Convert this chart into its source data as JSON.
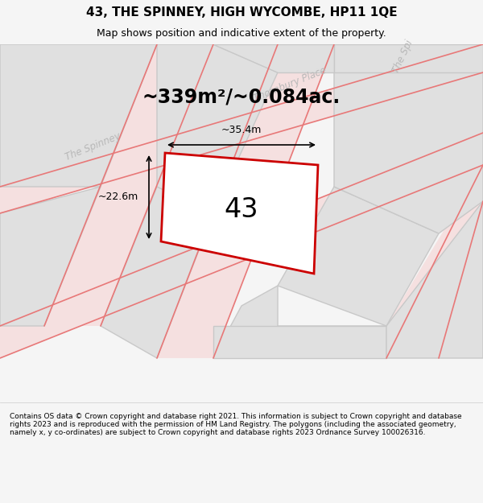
{
  "title": "43, THE SPINNEY, HIGH WYCOMBE, HP11 1QE",
  "subtitle": "Map shows position and indicative extent of the property.",
  "area_text": "~339m²/~0.084ac.",
  "property_number": "43",
  "width_label": "~35.4m",
  "height_label": "~22.6m",
  "footer": "Contains OS data © Crown copyright and database right 2021. This information is subject to Crown copyright and database rights 2023 and is reproduced with the permission of HM Land Registry. The polygons (including the associated geometry, namely x, y co-ordinates) are subject to Crown copyright and database rights 2023 Ordnance Survey 100026316.",
  "bg_color": "#f5f5f5",
  "map_bg": "#f0f0f0",
  "road_fill": "#f5e0e0",
  "road_line": "#e87878",
  "block_color": "#e0e0e0",
  "block_edge": "#c8c8c8",
  "highlight_color": "#cc0000",
  "highlight_fill": "#ffffff",
  "title_color": "#000000",
  "footer_color": "#000000",
  "dim_color": "#000000",
  "label_color": "#b8b8b8"
}
